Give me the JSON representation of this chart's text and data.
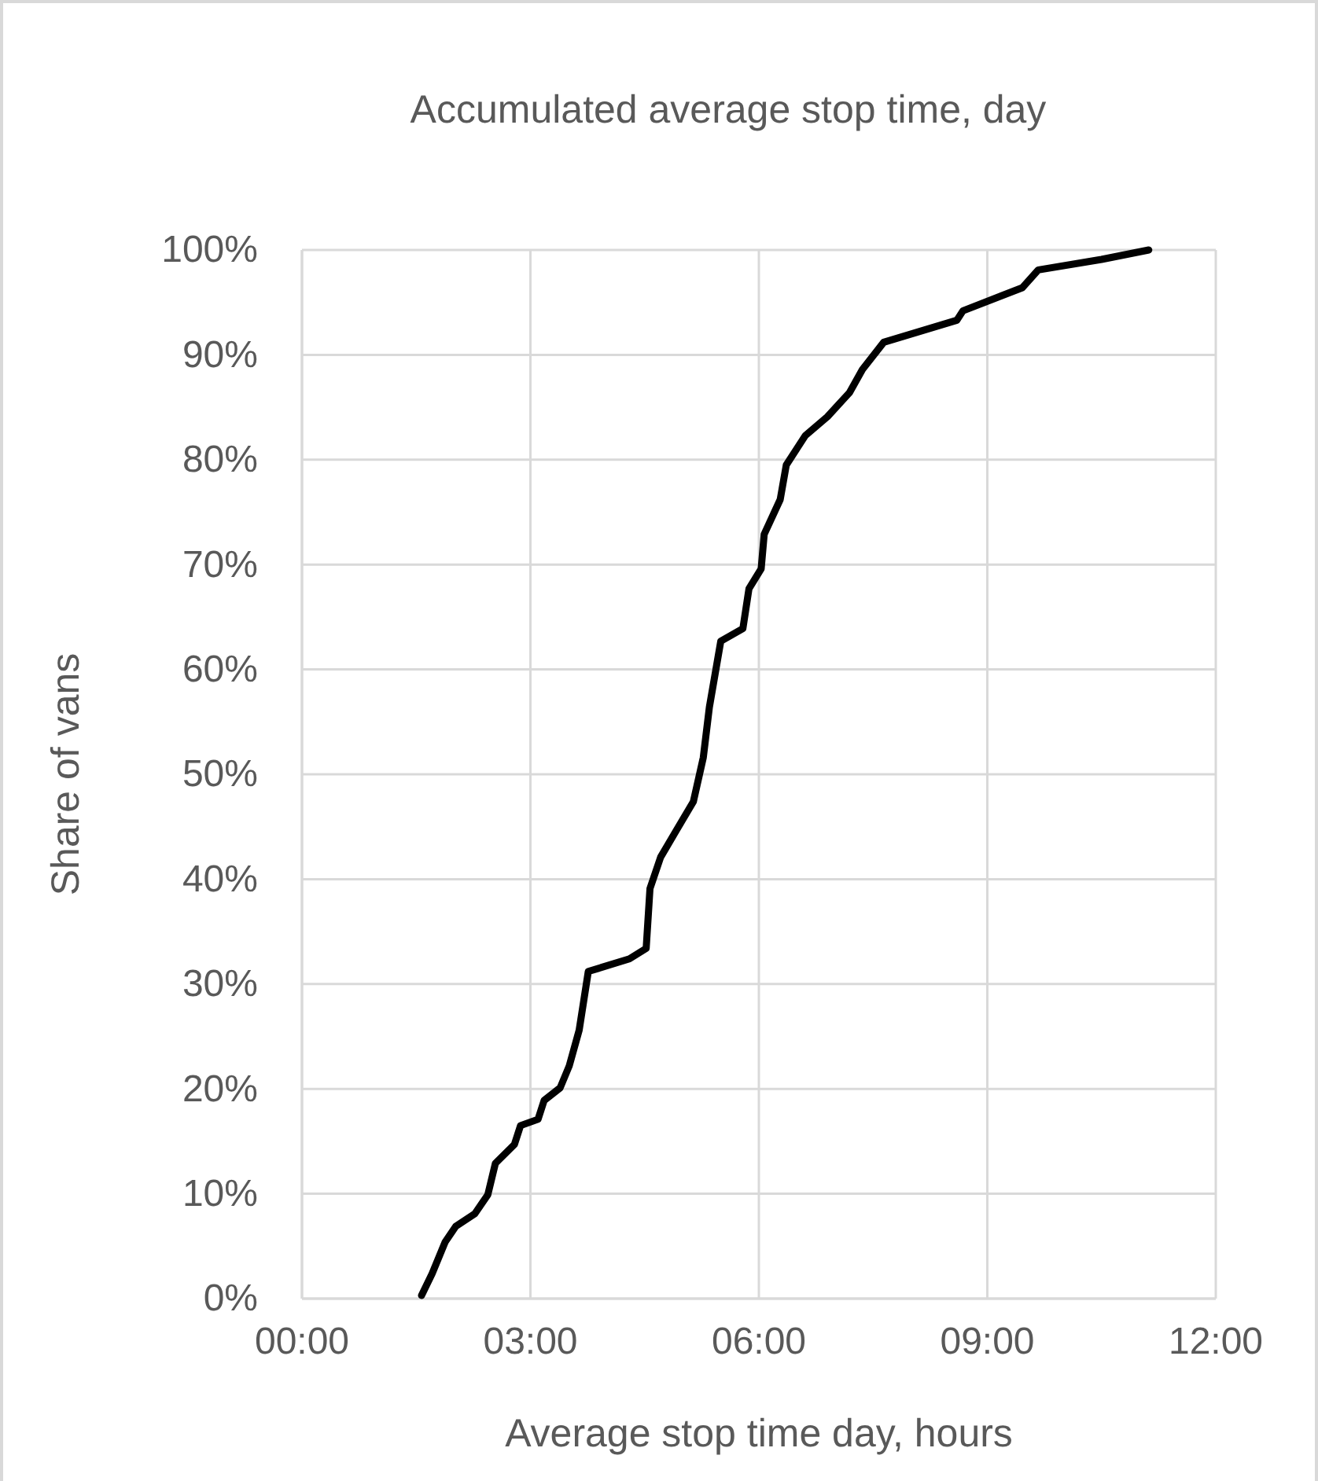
{
  "chart_data": {
    "type": "line",
    "title": "Accumulated average stop time, day",
    "xlabel": "Average stop time day, hours",
    "ylabel": "Share of vans",
    "x": [
      1.57,
      1.71,
      1.88,
      2.02,
      2.27,
      2.44,
      2.54,
      2.79,
      2.87,
      3.1,
      3.18,
      3.39,
      3.51,
      3.64,
      3.76,
      4.3,
      4.52,
      4.57,
      4.71,
      4.92,
      5.14,
      5.27,
      5.35,
      5.5,
      5.79,
      5.87,
      6.03,
      6.07,
      6.28,
      6.36,
      6.61,
      6.9,
      7.19,
      7.36,
      7.64,
      8.6,
      8.68,
      9.46,
      9.67,
      10.5,
      11.12
    ],
    "series": [
      {
        "color": "#000000",
        "values": [
          0.3,
          2.4,
          5.4,
          6.9,
          8.1,
          9.9,
          12.9,
          14.7,
          16.5,
          17.1,
          18.9,
          20.1,
          22.2,
          25.6,
          31.2,
          32.4,
          33.4,
          39.1,
          42.1,
          44.7,
          47.4,
          51.6,
          56.4,
          62.7,
          63.9,
          67.7,
          69.6,
          72.9,
          76.2,
          79.5,
          82.3,
          84.1,
          86.4,
          88.6,
          91.2,
          93.3,
          94.2,
          96.4,
          98.1,
          99.1,
          100
        ]
      }
    ],
    "xlim": [
      0,
      12
    ],
    "xticks": [
      {
        "value": 0,
        "label": "00:00"
      },
      {
        "value": 3,
        "label": "03:00"
      },
      {
        "value": 6,
        "label": "06:00"
      },
      {
        "value": 9,
        "label": "09:00"
      },
      {
        "value": 12,
        "label": "12:00"
      }
    ],
    "ylim": [
      0,
      100
    ],
    "yticks": [
      {
        "value": 0,
        "label": "0%"
      },
      {
        "value": 10,
        "label": "10%"
      },
      {
        "value": 20,
        "label": "20%"
      },
      {
        "value": 30,
        "label": "30%"
      },
      {
        "value": 40,
        "label": "40%"
      },
      {
        "value": 50,
        "label": "50%"
      },
      {
        "value": 60,
        "label": "60%"
      },
      {
        "value": 70,
        "label": "70%"
      },
      {
        "value": 80,
        "label": "80%"
      },
      {
        "value": 90,
        "label": "90%"
      },
      {
        "value": 100,
        "label": "100%"
      }
    ],
    "grid": true
  }
}
